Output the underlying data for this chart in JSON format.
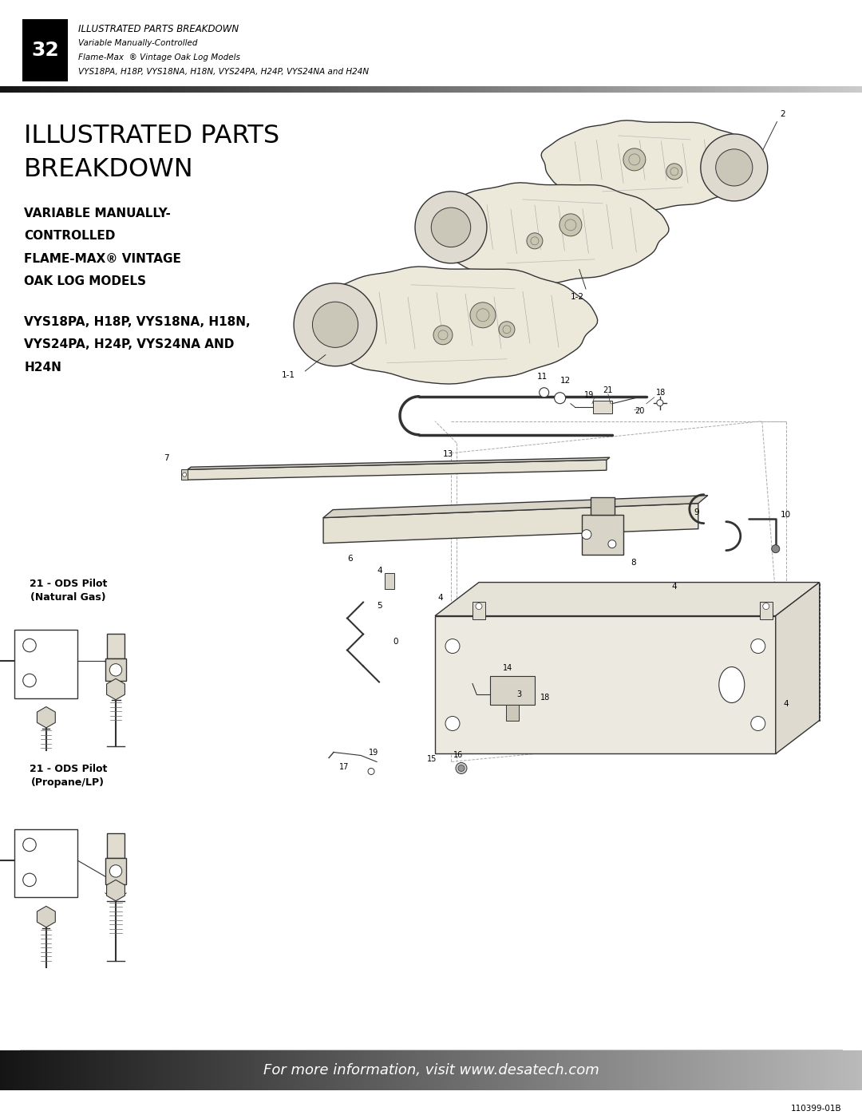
{
  "page_width": 10.8,
  "page_height": 13.97,
  "dpi": 100,
  "bg_color": "#ffffff",
  "header_number": "32",
  "header_title": "ILLUSTRATED PARTS BREAKDOWN",
  "header_sub1": "Variable Manually-Controlled",
  "header_sub2": "Flame-Max  ® Vintage Oak Log Models",
  "header_sub3": "VYS18PA, H18P, VYS18NA, H18N, VYS24PA, H24P, VYS24NA and H24N",
  "main_title_line1": "ILLUSTRATED PARTS",
  "main_title_line2": "BREAKDOWN",
  "subtitle_line1": "VARIABLE MANUALLY-",
  "subtitle_line2": "CONTROLLED",
  "subtitle_line3": "FLAME-MAX® VINTAGE",
  "subtitle_line4": "OAK LOG MODELS",
  "model_line1": "VYS18PA, H18P, VYS18NA, H18N,",
  "model_line2": "VYS24PA, H24P, VYS24NA AND",
  "model_line3": "H24N",
  "pilot_ng_label": "21 - ODS Pilot\n(Natural Gas)",
  "pilot_lp_label": "21 - ODS Pilot\n(Propane/LP)",
  "footer_text": "For more information, visit www.desatech.com",
  "footer_number": "110399-01B"
}
